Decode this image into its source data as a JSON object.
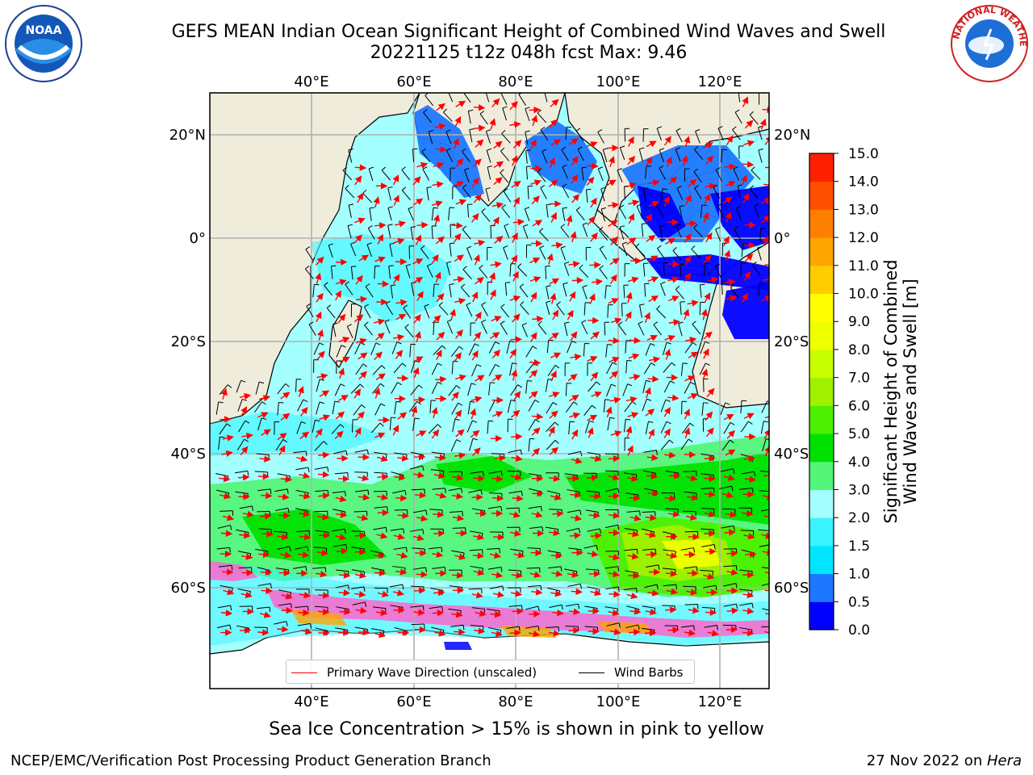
{
  "title_line1": "GEFS MEAN Indian Ocean Significant Height of Combined Wind Waves and Swell",
  "title_line2": "20221125 t12z 048h fcst   Max: 9.46",
  "logos": {
    "noaa_text": "NOAA",
    "nws_text": "NATIONAL WEATHER SERVICE"
  },
  "map": {
    "lon_labels": [
      "40°E",
      "60°E",
      "80°E",
      "100°E",
      "120°E"
    ],
    "lat_labels": [
      "20°N",
      "0°",
      "20°S",
      "40°S",
      "60°S"
    ],
    "colors": {
      "land": "#efecdc",
      "grid": "#b0b0b0",
      "wave_arrow": "#ff0000",
      "wind_barb": "#000000",
      "ice": "#ff66cc"
    }
  },
  "legend": {
    "wave_label": "Primary Wave Direction (unscaled)",
    "wind_label": "Wind Barbs"
  },
  "colorbar": {
    "label_line1": "Significant Height of Combined",
    "label_line2": "Wind Waves and Swell [m]",
    "ticks": [
      "0.0",
      "0.5",
      "1.0",
      "1.5",
      "2.0",
      "3.0",
      "4.0",
      "5.0",
      "6.0",
      "7.0",
      "8.0",
      "9.0",
      "10.0",
      "11.0",
      "12.0",
      "13.0",
      "14.0",
      "15.0"
    ],
    "colors": [
      "#0000ff",
      "#1e78ff",
      "#00e5ff",
      "#3af4ff",
      "#a4ffff",
      "#55f57a",
      "#00e100",
      "#4cf000",
      "#a0f000",
      "#c8ff00",
      "#eeff00",
      "#ffff00",
      "#ffcc00",
      "#ffa500",
      "#ff8000",
      "#ff5000",
      "#ff2000"
    ]
  },
  "footer": {
    "subtitle": "Sea Ice Concentration > 15% is shown in pink to yellow",
    "credit": "NCEP/EMC/Verification Post Processing Product Generation Branch",
    "date_prefix": "27 Nov 2022 on ",
    "date_host": "Hera"
  }
}
